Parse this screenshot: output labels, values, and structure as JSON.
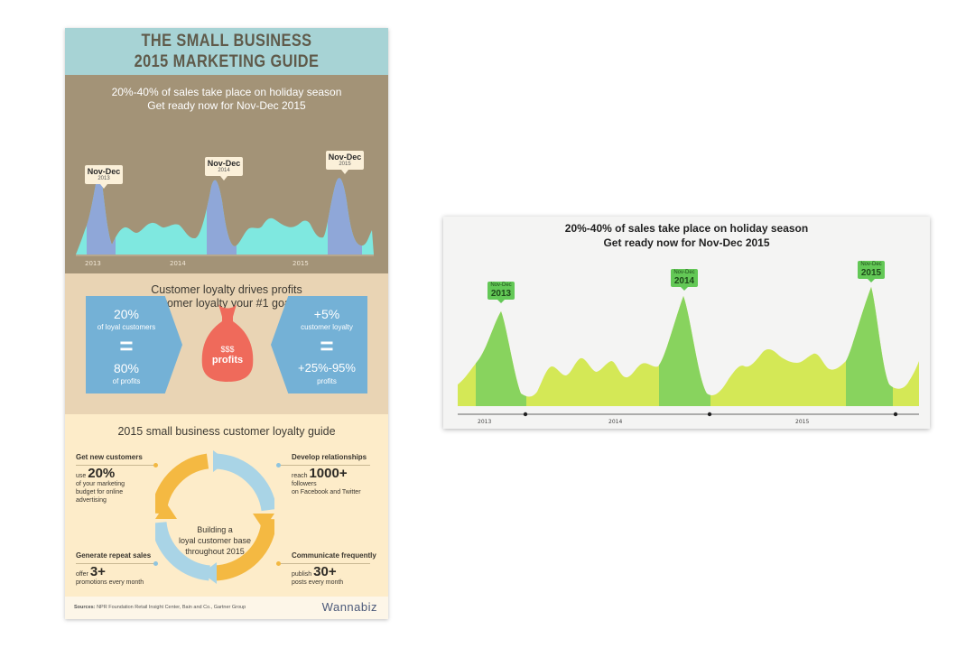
{
  "infographic": {
    "title": [
      "THE SMALL BUSINESS",
      "2015 MARKETING GUIDE"
    ],
    "holiday": {
      "heading": [
        "20%-40% of sales take place on holiday season",
        "Get ready now for Nov-Dec 2015"
      ],
      "callouts": [
        {
          "month": "Nov-Dec",
          "year": "2013"
        },
        {
          "month": "Nov-Dec",
          "year": "2014"
        },
        {
          "month": "Nov-Dec",
          "year": "2015"
        }
      ],
      "years": [
        "2013",
        "2014",
        "2015"
      ]
    },
    "loyalty": {
      "heading": [
        "Customer loyalty drives profits",
        "Make customer loyalty your #1 goal for 2015"
      ],
      "left": {
        "pct": "20%",
        "label": "of loyal customers",
        "eq": "=",
        "result": "80%",
        "result_label": "of profits"
      },
      "bag": {
        "symbol": "$$$",
        "label": "profits"
      },
      "right": {
        "pct": "+5%",
        "label": "customer loyalty",
        "eq": "=",
        "result": "+25%-95%",
        "result_label": "profits"
      }
    },
    "guide": {
      "heading": "2015 small business customer loyalty guide",
      "center": [
        "Building a",
        "loyal customer base",
        "throughout 2015"
      ],
      "items": [
        {
          "title": "Get new customers",
          "prefix": "use",
          "value": "20%",
          "lines": [
            "of your marketing",
            "budget for online",
            "advertising"
          ]
        },
        {
          "title": "Develop relationships",
          "prefix": "reach",
          "value": "1000+",
          "lines": [
            "followers",
            "on Facebook and Twitter"
          ]
        },
        {
          "title": "Generate repeat sales",
          "prefix": "offer",
          "value": "3+",
          "lines": [
            "promotions every month"
          ]
        },
        {
          "title": "Communicate frequently",
          "prefix": "publish",
          "value": "30+",
          "lines": [
            "posts every month"
          ]
        }
      ]
    },
    "footer": {
      "sources_label": "Sources:",
      "sources_text": "NPR Foundation Retail Insight Center, Bain and Co., Gartner Group",
      "logo": "Wannabiz"
    }
  },
  "card": {
    "heading": [
      "20%-40% of sales take place on holiday season",
      "Get ready now for Nov-Dec 2015"
    ],
    "callouts": [
      {
        "month": "Nov-Dec",
        "year": "2013"
      },
      {
        "month": "Nov-Dec",
        "year": "2014"
      },
      {
        "month": "Nov-Dec",
        "year": "2015"
      }
    ],
    "years": [
      "2013",
      "2014",
      "2015"
    ]
  },
  "colors": {
    "title_bg": "#a7d3d5",
    "holiday_bg": "#a39377",
    "loyalty_bg": "#e9d4b4",
    "guide_bg": "#fdecc9",
    "area_cyan": "#7fe8e0",
    "area_blue": "#8fa7d8",
    "arrow_blue": "#74b1d6",
    "bag_red": "#ef6a5b",
    "ring_yellow": "#f4b942",
    "ring_blue": "#a9d4e6",
    "lime": "#d4e856",
    "green": "#88d35e"
  }
}
